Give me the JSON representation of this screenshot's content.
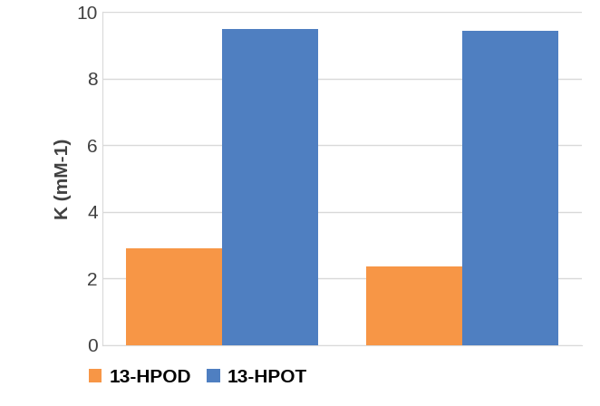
{
  "chart_data": {
    "type": "bar",
    "y_label": "K (mM-1)",
    "categories": [
      null,
      null
    ],
    "series": [
      {
        "name": "13-HPOD",
        "color": "#f79646",
        "values": [
          2.9,
          2.35
        ]
      },
      {
        "name": "13-HPOT",
        "color": "#4f7fc1",
        "values": [
          9.5,
          9.45
        ]
      }
    ],
    "ylim": [
      0,
      10
    ],
    "yticks": [
      0,
      2,
      4,
      6,
      8,
      10
    ],
    "grid": true,
    "legend": "bottom"
  }
}
